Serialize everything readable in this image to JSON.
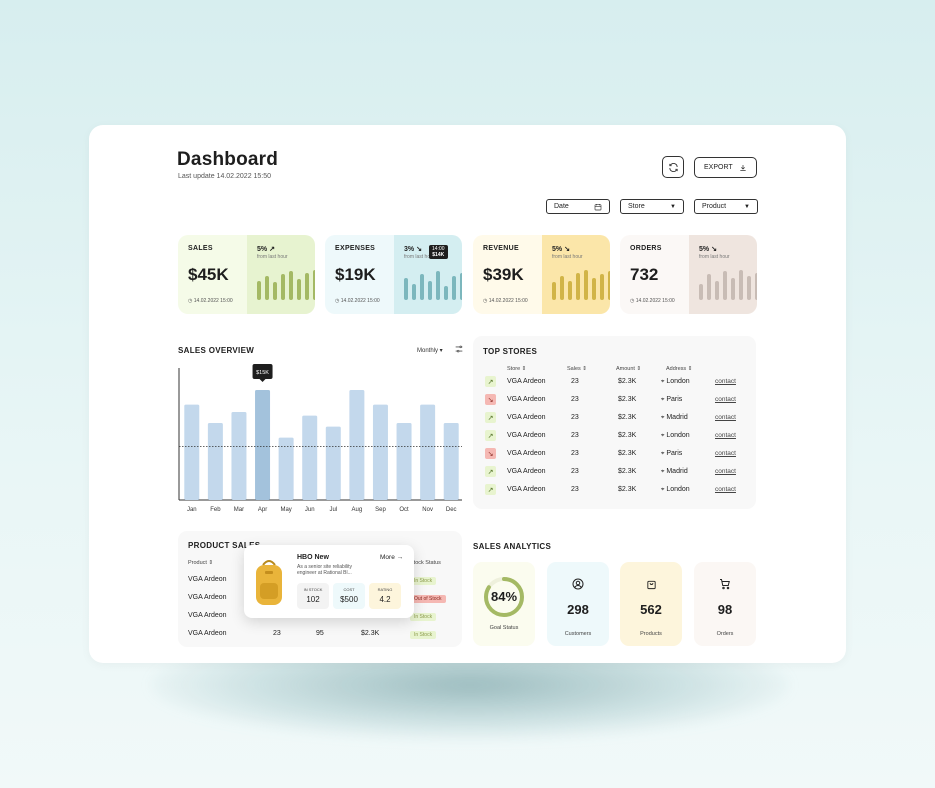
{
  "header": {
    "title": "Dashboard",
    "last_update_label": "Last update",
    "last_update": "14.02.2022 15:50",
    "export_label": "EXPORT"
  },
  "filters": [
    {
      "label": "Date",
      "icon": "calendar-icon"
    },
    {
      "label": "Store",
      "icon": "caret-down-icon"
    },
    {
      "label": "Product",
      "icon": "caret-down-icon"
    }
  ],
  "kpis": [
    {
      "label": "SALES",
      "value": "$45K",
      "pct": "5%",
      "dir": "↗",
      "from": "from last hour",
      "date": "14.02.2022 15:00",
      "bg_left": "#f5fbe8",
      "bg_right": "#e7f3d0",
      "bar_color": "#a4b964",
      "bars": [
        0.6,
        0.75,
        0.55,
        0.8,
        0.9,
        0.65,
        0.85,
        0.95
      ]
    },
    {
      "label": "EXPENSES",
      "value": "$19K",
      "pct": "3%",
      "dir": "↘",
      "from": "from last hour",
      "date": "14.02.2022 15:00",
      "bg_left": "#eef9fb",
      "bg_right": "#d4eef1",
      "bar_color": "#7cb7bd",
      "bars": [
        0.7,
        0.5,
        0.8,
        0.6,
        0.9,
        0.45,
        0.75,
        0.85
      ],
      "tooltip": {
        "time": "14:00",
        "value": "$14K"
      }
    },
    {
      "label": "REVENUE",
      "value": "$39K",
      "pct": "5%",
      "dir": "↘",
      "from": "from last hour",
      "date": "14.02.2022 15:00",
      "bg_left": "#fffaea",
      "bg_right": "#fbe6a9",
      "bar_color": "#d1b447",
      "bars": [
        0.55,
        0.75,
        0.6,
        0.85,
        0.95,
        0.7,
        0.8,
        0.9
      ]
    },
    {
      "label": "ORDERS",
      "value": "732",
      "pct": "5%",
      "dir": "↘",
      "from": "from last hour",
      "date": "14.02.2022 15:00",
      "bg_left": "#fbf8f6",
      "bg_right": "#efe5df",
      "bar_color": "#c8bcb5",
      "bars": [
        0.5,
        0.8,
        0.6,
        0.9,
        0.7,
        0.95,
        0.75,
        0.85
      ]
    }
  ],
  "sales_overview": {
    "title": "SALES OVERVIEW",
    "period": "Monthly",
    "tooltip": "$15K"
  },
  "chart_data": {
    "type": "bar",
    "title": "SALES OVERVIEW",
    "categories": [
      "Jan",
      "Feb",
      "Mar",
      "Apr",
      "May",
      "Jun",
      "Jul",
      "Aug",
      "Sep",
      "Oct",
      "Nov",
      "Dec"
    ],
    "values": [
      13,
      10.5,
      12,
      15,
      8.5,
      11.5,
      10,
      15,
      13,
      10.5,
      13,
      10.5
    ],
    "ylim": [
      0,
      18
    ],
    "highlight": "Apr",
    "reference_line": 7.3
  },
  "top_stores": {
    "title": "TOP STORES",
    "columns": [
      "Store",
      "Sales",
      "Amount",
      "Address"
    ],
    "rows": [
      {
        "trend": "up",
        "store": "VGA Ardeon",
        "sales": "23",
        "amount": "$2.3K",
        "address": "London",
        "action": "contact"
      },
      {
        "trend": "down",
        "store": "VGA Ardeon",
        "sales": "23",
        "amount": "$2.3K",
        "address": "Paris",
        "action": "contact"
      },
      {
        "trend": "up",
        "store": "VGA Ardeon",
        "sales": "23",
        "amount": "$2.3K",
        "address": "Madrid",
        "action": "contact"
      },
      {
        "trend": "up",
        "store": "VGA Ardeon",
        "sales": "23",
        "amount": "$2.3K",
        "address": "London",
        "action": "contact"
      },
      {
        "trend": "down",
        "store": "VGA Ardeon",
        "sales": "23",
        "amount": "$2.3K",
        "address": "Paris",
        "action": "contact"
      },
      {
        "trend": "up",
        "store": "VGA Ardeon",
        "sales": "23",
        "amount": "$2.3K",
        "address": "Madrid",
        "action": "contact"
      },
      {
        "trend": "up",
        "store": "VGA Ardeon",
        "sales": "23",
        "amount": "$2.3K",
        "address": "London",
        "action": "contact"
      }
    ]
  },
  "product_sales": {
    "title": "PRODUCT SALES",
    "col_product": "Product",
    "col_status": "Stock Status",
    "rows": [
      {
        "product": "VGA Ardeon",
        "status": "In Stock",
        "status_type": "in"
      },
      {
        "product": "VGA Ardeon",
        "status": "Out of Stock",
        "status_type": "out"
      },
      {
        "product": "VGA Ardeon",
        "status": "In Stock",
        "status_type": "in"
      },
      {
        "product": "VGA Ardeon",
        "qty": "23",
        "sold": "95",
        "amount": "$2.3K",
        "status": "In Stock",
        "status_type": "in"
      }
    ],
    "popup": {
      "name": "HBO New",
      "more": "More",
      "desc1": "As a senior site reliability",
      "desc2": "engineer at Rational Bl...",
      "stats": [
        {
          "label": "IN STOCK",
          "value": "102"
        },
        {
          "label": "COST",
          "value": "$500"
        },
        {
          "label": "RATING",
          "value": "4.2"
        }
      ]
    }
  },
  "sales_analytics": {
    "title": "SALES ANALYTICS",
    "items": [
      {
        "value": "84%",
        "caption": "Goal Status",
        "bg": "#fbfcef",
        "progress": 0.84
      },
      {
        "value": "298",
        "caption": "Customers",
        "bg": "#eef9fb",
        "icon": "user-icon"
      },
      {
        "value": "562",
        "caption": "Products",
        "bg": "#fdf5dc",
        "icon": "bag-icon"
      },
      {
        "value": "98",
        "caption": "Orders",
        "bg": "#fbf7f4",
        "icon": "cart-icon"
      }
    ]
  }
}
